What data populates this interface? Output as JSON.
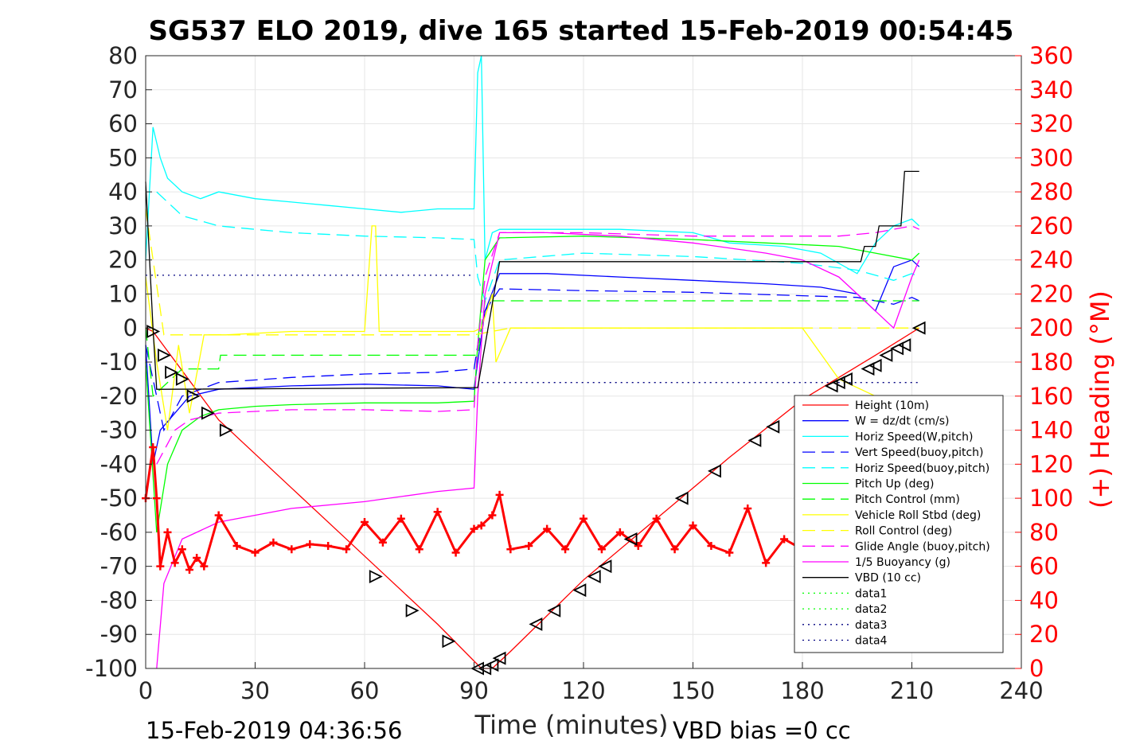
{
  "title": "SG537 ELO 2019, dive 165 started 15-Feb-2019 00:54:45",
  "footer_left": "15-Feb-2019 04:36:56",
  "footer_right": "VBD bias =0 cc",
  "chart_data": {
    "type": "line",
    "xlabel": "Time (minutes)",
    "ylabel": "",
    "y2label": "(+) Heading (°M)",
    "xlim": [
      0,
      240
    ],
    "ylim": [
      -100,
      80
    ],
    "y2lim": [
      0,
      360
    ],
    "xticks": [
      0,
      30,
      60,
      90,
      120,
      150,
      180,
      210,
      240
    ],
    "yticks": [
      80,
      70,
      60,
      50,
      40,
      30,
      20,
      10,
      0,
      -10,
      -20,
      -30,
      -40,
      -50,
      -60,
      -70,
      -80,
      -90,
      -100
    ],
    "y2ticks": [
      360,
      340,
      320,
      300,
      280,
      260,
      240,
      220,
      200,
      180,
      160,
      140,
      120,
      100,
      80,
      60,
      40,
      20,
      0
    ],
    "grid": true,
    "legend_position": "lower-right",
    "series": [
      {
        "name": "Height (10m)",
        "color": "#ff0000",
        "style": "solid",
        "x": [
          0,
          2,
          20,
          40,
          60,
          80,
          92,
          95,
          100,
          120,
          140,
          160,
          180,
          200,
          212
        ],
        "y": [
          0,
          -1,
          -27,
          -47,
          -67,
          -87,
          -100,
          -100,
          -95,
          -74,
          -56,
          -38,
          -21,
          -8,
          0
        ]
      },
      {
        "name": "W = dz/dt (cm/s)",
        "color": "#0000ff",
        "style": "solid",
        "x": [
          0,
          2,
          4,
          8,
          12,
          20,
          40,
          60,
          80,
          90,
          91,
          93,
          97,
          110,
          130,
          150,
          170,
          185,
          195,
          200,
          205,
          210,
          212
        ],
        "y": [
          -5,
          -40,
          -30,
          -25,
          -20,
          -18,
          -17,
          -16.5,
          -17,
          -18,
          -10,
          5,
          16,
          16,
          15,
          14,
          13,
          12,
          10,
          5,
          18,
          20,
          18
        ]
      },
      {
        "name": "Horiz Speed(W,pitch)",
        "color": "#00ffff",
        "style": "solid",
        "x": [
          0,
          2,
          4,
          6,
          10,
          15,
          20,
          30,
          40,
          50,
          60,
          70,
          80,
          90,
          91,
          92,
          93,
          95,
          97,
          110,
          130,
          150,
          160,
          175,
          185,
          195,
          200,
          205,
          210,
          212
        ],
        "y": [
          20,
          59,
          50,
          44,
          40,
          38,
          40,
          38,
          37,
          36,
          35,
          34,
          35,
          35,
          75,
          80,
          20,
          28,
          29,
          29,
          29,
          28,
          25,
          24,
          22,
          16,
          25,
          30,
          32,
          30
        ]
      },
      {
        "name": "Vert Speed(buoy,pitch)",
        "color": "#0000ff",
        "style": "dashed",
        "x": [
          0,
          5,
          10,
          20,
          40,
          60,
          80,
          90,
          91,
          93,
          97,
          120,
          150,
          180,
          195,
          205,
          210,
          212
        ],
        "y": [
          -5,
          -30,
          -20,
          -16,
          -14.5,
          -13.5,
          -13,
          -12,
          -5,
          5,
          11.5,
          11,
          10.5,
          9.5,
          9,
          7,
          9,
          8
        ]
      },
      {
        "name": "Horiz Speed(buoy,pitch)",
        "color": "#00ffff",
        "style": "dashed",
        "x": [
          3,
          10,
          20,
          30,
          40,
          60,
          80,
          90,
          91,
          93,
          97,
          120,
          150,
          180,
          195,
          205,
          210,
          212
        ],
        "y": [
          40,
          33,
          30,
          29,
          28,
          27,
          26.5,
          26,
          15,
          8,
          20,
          22,
          21,
          19,
          17,
          14,
          16,
          15
        ]
      },
      {
        "name": "Pitch Up (deg)",
        "color": "#00ff00",
        "style": "solid",
        "x": [
          0,
          3,
          6,
          10,
          15,
          20,
          30,
          40,
          60,
          80,
          90,
          91,
          93,
          97,
          120,
          150,
          170,
          190,
          200,
          210,
          212
        ],
        "y": [
          -10,
          -60,
          -40,
          -30,
          -26,
          -24,
          -23,
          -22.5,
          -22,
          -22,
          -21.5,
          -5,
          20,
          26.5,
          27,
          26,
          25,
          24,
          22,
          20,
          22
        ]
      },
      {
        "name": "Pitch Control (mm)",
        "color": "#00ff00",
        "style": "dashed",
        "x": [
          0,
          2,
          10,
          20,
          20.5,
          90,
          91,
          93,
          97,
          180,
          190,
          200,
          210,
          212
        ],
        "y": [
          0,
          -20,
          -12,
          -12,
          -8,
          -8,
          -8,
          8,
          8,
          8,
          8,
          8,
          8,
          8
        ]
      },
      {
        "name": "Vehicle Roll Stbd (deg)",
        "color": "#ffff00",
        "style": "solid",
        "x": [
          0,
          3,
          6,
          9,
          12,
          16,
          22,
          40,
          60,
          62,
          63,
          64,
          80,
          90,
          92,
          95,
          96,
          100,
          120,
          140,
          160,
          180,
          190,
          200,
          210,
          212
        ],
        "y": [
          15,
          -10,
          -30,
          -5,
          -25,
          -2,
          -2,
          -1,
          -1,
          30,
          30,
          -1,
          -1,
          -1,
          0,
          10,
          -10,
          0,
          0,
          0,
          0,
          0,
          -15,
          -20,
          -25,
          -20
        ]
      },
      {
        "name": "Roll Control (deg)",
        "color": "#ffff00",
        "style": "dashed",
        "x": [
          0,
          5,
          10,
          20,
          40,
          60,
          80,
          90,
          100,
          120,
          140,
          160,
          180,
          200,
          210,
          212
        ],
        "y": [
          35,
          -2,
          -2,
          -2,
          -2,
          -2,
          -2,
          -2,
          0,
          0,
          0,
          0,
          0,
          0,
          0,
          0
        ]
      },
      {
        "name": "Glide Angle (buoy,pitch)",
        "color": "#ff00ff",
        "style": "dashed",
        "x": [
          3,
          8,
          12,
          20,
          40,
          60,
          80,
          90,
          91,
          93,
          97,
          120,
          150,
          170,
          190,
          200,
          210,
          212
        ],
        "y": [
          -40,
          -30,
          -27,
          -25,
          -24,
          -24,
          -24.5,
          -24,
          -5,
          15,
          28,
          28,
          27,
          27,
          27,
          28,
          30,
          29
        ]
      },
      {
        "name": "1/5 Buoyancy (g)",
        "color": "#ff00ff",
        "style": "solid",
        "x": [
          3,
          5,
          10,
          20,
          30,
          40,
          60,
          80,
          90,
          91,
          93,
          97,
          110,
          130,
          150,
          170,
          180,
          190,
          195,
          200,
          205,
          210,
          212
        ],
        "y": [
          -100,
          -75,
          -62,
          -57,
          -55,
          -53,
          -51,
          -48,
          -47,
          -20,
          10,
          28,
          28,
          27,
          25,
          22,
          20,
          15,
          10,
          5,
          0,
          15,
          20
        ]
      },
      {
        "name": "VBD (10 cc)",
        "color": "#000000",
        "style": "solid",
        "x": [
          0,
          2,
          3,
          5,
          90,
          91,
          97,
          98,
          140,
          196,
          197,
          200,
          201,
          207,
          208,
          212
        ],
        "y": [
          43,
          0,
          -18,
          -18,
          -17.5,
          -17.5,
          19.5,
          19.5,
          19.5,
          19.5,
          24,
          24,
          30,
          30,
          46,
          46
        ]
      },
      {
        "name": "data1",
        "color": "#00ff00",
        "style": "dotted",
        "x": [],
        "y": []
      },
      {
        "name": "data2",
        "color": "#00ff00",
        "style": "dotted",
        "x": [],
        "y": []
      },
      {
        "name": "data3",
        "color": "#000080",
        "style": "dotted",
        "x": [
          0,
          90
        ],
        "y": [
          15.5,
          15.5
        ]
      },
      {
        "name": "data4",
        "color": "#000080",
        "style": "dotted",
        "x": [
          92,
          212
        ],
        "y": [
          -16,
          -16
        ]
      }
    ],
    "heading": {
      "name": "(+) Heading (°M)",
      "color": "#ff0000",
      "axis": "right",
      "x": [
        0,
        2,
        3,
        4,
        6,
        8,
        10,
        12,
        14,
        16,
        20,
        25,
        30,
        35,
        40,
        45,
        50,
        55,
        60,
        65,
        70,
        75,
        80,
        85,
        90,
        92,
        95,
        97,
        100,
        105,
        110,
        115,
        120,
        125,
        130,
        135,
        140,
        145,
        150,
        155,
        160,
        165,
        170,
        175,
        180,
        185
      ],
      "y": [
        100,
        130,
        100,
        60,
        80,
        62,
        70,
        58,
        65,
        60,
        90,
        72,
        68,
        74,
        70,
        73,
        72,
        70,
        86,
        74,
        88,
        70,
        92,
        68,
        82,
        84,
        90,
        102,
        70,
        72,
        82,
        70,
        88,
        70,
        80,
        72,
        88,
        70,
        84,
        72,
        68,
        94,
        62,
        76,
        70,
        60
      ]
    },
    "markers": {
      "name": "dive profile triangles",
      "x": [
        2,
        5,
        7,
        10,
        13,
        17,
        22,
        63,
        73,
        83,
        91,
        93,
        95,
        97,
        107,
        112,
        119,
        123,
        126,
        133,
        147,
        156,
        167,
        172,
        188,
        190,
        192,
        198,
        200,
        203,
        206,
        208,
        212
      ],
      "y": [
        -1,
        -8,
        -13,
        -15,
        -20,
        -25,
        -30,
        -73,
        -83,
        -92,
        -100,
        -100,
        -99,
        -97,
        -87,
        -83,
        -77,
        -73,
        -70,
        -62,
        -50,
        -42,
        -33,
        -29,
        -17,
        -16,
        -15,
        -12,
        -11,
        -8,
        -6,
        -5,
        0
      ]
    }
  }
}
